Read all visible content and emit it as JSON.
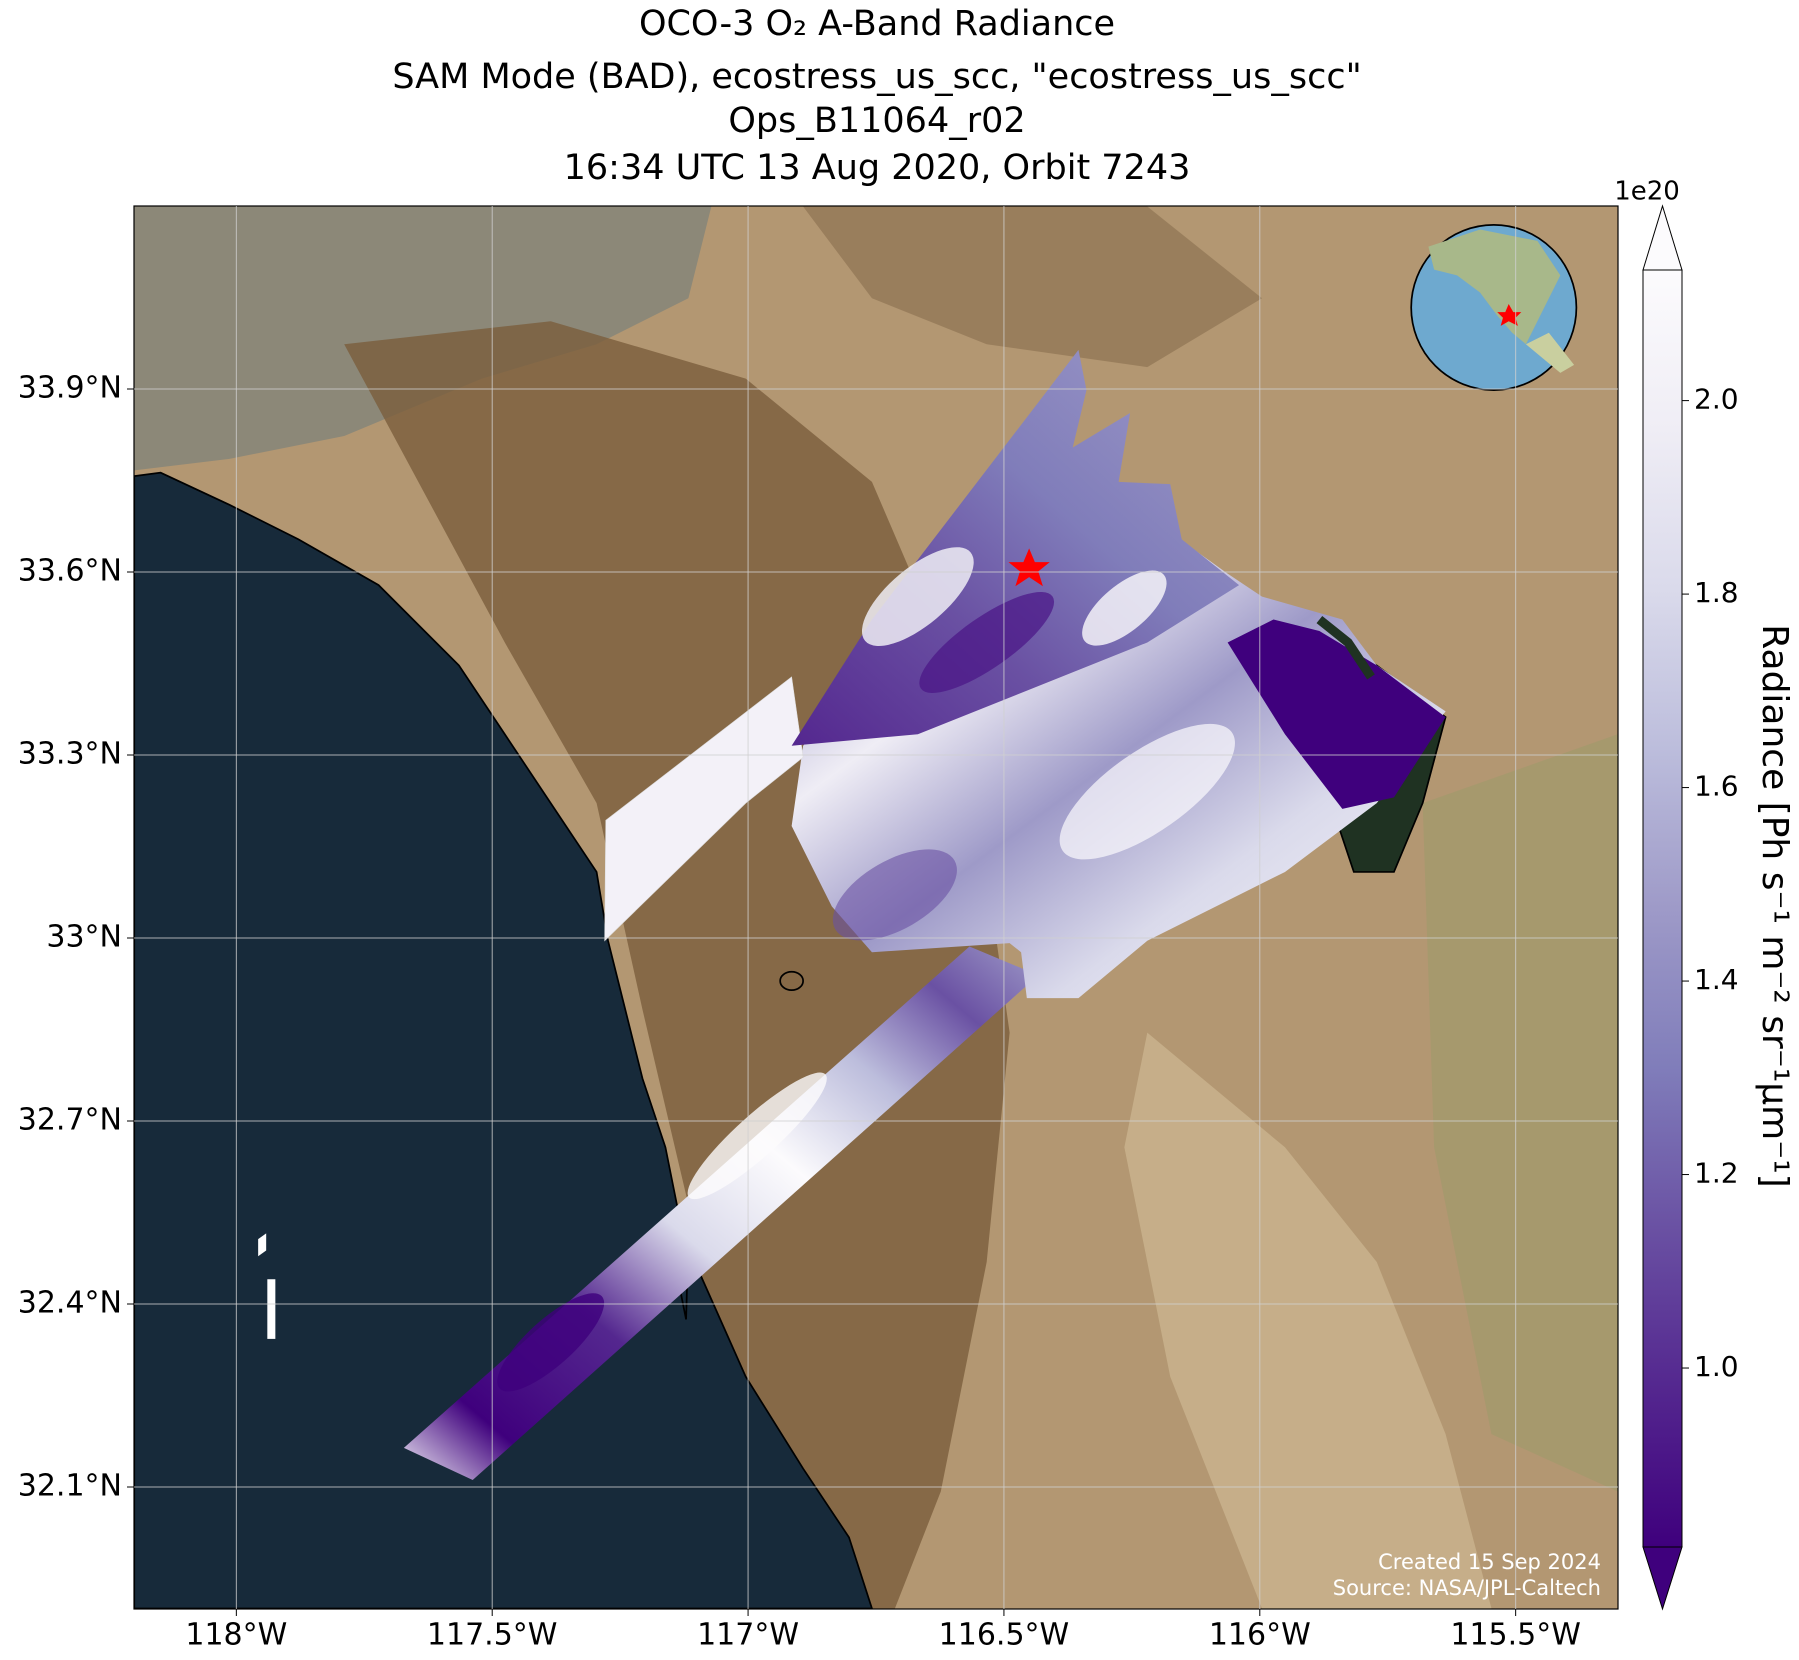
{
  "chart_data": {
    "type": "map",
    "title": [
      "OCO-3 O₂ A-Band Radiance",
      "SAM Mode (BAD), ecostress_us_scc, \"ecostress_us_scc\"",
      "Ops_B11064_r02",
      "16:34 UTC 13 Aug 2020, Orbit 7243"
    ],
    "xlim": [
      -118.2,
      -115.3
    ],
    "ylim": [
      31.9,
      34.2
    ],
    "xticks": [
      {
        "value": -118,
        "label": "118°W"
      },
      {
        "value": -117.5,
        "label": "117.5°W"
      },
      {
        "value": -117,
        "label": "117°W"
      },
      {
        "value": -116.5,
        "label": "116.5°W"
      },
      {
        "value": -116,
        "label": "116°W"
      },
      {
        "value": -115.5,
        "label": "115.5°W"
      }
    ],
    "yticks": [
      {
        "value": 32.1,
        "label": "32.1°N"
      },
      {
        "value": 32.4,
        "label": "32.4°N"
      },
      {
        "value": 32.7,
        "label": "32.7°N"
      },
      {
        "value": 33,
        "label": "33°N"
      },
      {
        "value": 33.3,
        "label": "33.3°N"
      },
      {
        "value": 33.6,
        "label": "33.6°N"
      },
      {
        "value": 33.9,
        "label": "33.9°N"
      }
    ],
    "grid": true,
    "colorbar": {
      "label": "Radiance [Ph s⁻¹ m⁻² sr⁻¹µm⁻¹]",
      "offset_label": "1e20",
      "lim": [
        0.815,
        2.135
      ],
      "ticks": [
        {
          "value": 1,
          "label": "1.0"
        },
        {
          "value": 1.2,
          "label": "1.2"
        },
        {
          "value": 1.4,
          "label": "1.4"
        },
        {
          "value": 1.6,
          "label": "1.6"
        },
        {
          "value": 1.8,
          "label": "1.8"
        },
        {
          "value": 2,
          "label": "2.0"
        }
      ],
      "colormap": [
        "#3f007d",
        "#54278f",
        "#6a51a3",
        "#807dba",
        "#9e9ac8",
        "#bcbddc",
        "#dadaeb",
        "#efedf5",
        "#fcfbfd"
      ]
    },
    "annotations": [
      "Created 15 Sep 2024",
      "Source: NASA/JPL-Caltech"
    ]
  }
}
